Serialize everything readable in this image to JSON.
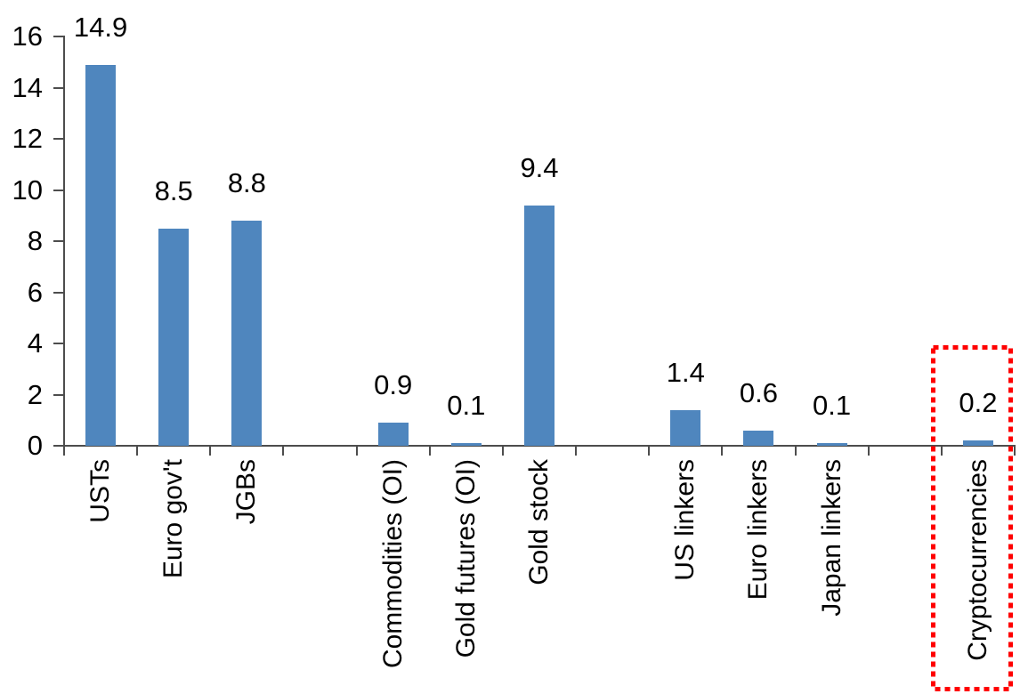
{
  "chart_data": {
    "type": "bar",
    "title": "",
    "xlabel": "",
    "ylabel": "",
    "categories": [
      "USTs",
      "Euro gov't",
      "JGBs",
      "",
      "Commodities (OI)",
      "Gold futures (OI)",
      "Gold stock",
      "",
      "US linkers",
      "Euro linkers",
      "Japan linkers",
      "",
      "Cryptocurrencies"
    ],
    "values": [
      14.9,
      8.5,
      8.8,
      null,
      0.9,
      0.1,
      9.4,
      null,
      1.4,
      0.6,
      0.1,
      null,
      0.2
    ],
    "value_labels": [
      "14.9",
      "8.5",
      "8.8",
      "",
      "0.9",
      "0.1",
      "9.4",
      "",
      "1.4",
      "0.6",
      "0.1",
      "",
      "0.2"
    ],
    "ylim": [
      0,
      16
    ],
    "ytick_step": 2,
    "ytick_labels": [
      "0",
      "2",
      "4",
      "6",
      "8",
      "10",
      "12",
      "14",
      "16"
    ],
    "grid": false,
    "legend": false,
    "bar_color": "#4F86BE",
    "axis_color": "#4d4d4d",
    "text_color": "#000000",
    "annotation": {
      "type": "highlight-box",
      "target": "Cryptocurrencies",
      "style": "dotted",
      "color": "#FF0000"
    }
  }
}
